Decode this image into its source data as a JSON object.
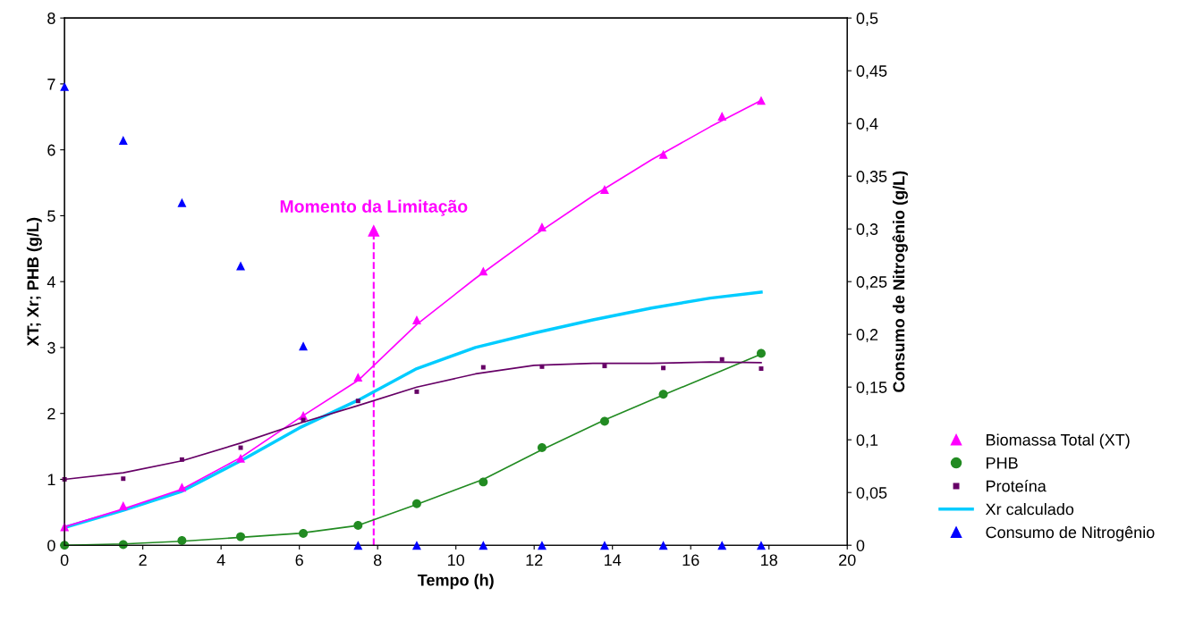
{
  "chart_data": {
    "type": "scatter",
    "xlabel": "Tempo (h)",
    "ylabel": "XT; Xr; PHB (g/L)",
    "y2label": "Consumo de Nitrogênio (g/L)",
    "xlim": [
      0,
      20
    ],
    "xticks": [
      0,
      2,
      4,
      6,
      8,
      10,
      12,
      14,
      16,
      18,
      20
    ],
    "ylim": [
      0,
      8
    ],
    "yticks": [
      0,
      1,
      2,
      3,
      4,
      5,
      6,
      7,
      8
    ],
    "y2lim": [
      0,
      0.5
    ],
    "y2ticks": [
      0,
      {
        "value": 0.05,
        "label": "0,05"
      },
      {
        "value": 0.1,
        "label": "0,1"
      },
      {
        "value": 0.15,
        "label": "0,15"
      },
      {
        "value": 0.2,
        "label": "0,2"
      },
      {
        "value": 0.25,
        "label": "0,25"
      },
      {
        "value": 0.3,
        "label": "0,3"
      },
      {
        "value": 0.35,
        "label": "0,35"
      },
      {
        "value": 0.4,
        "label": "0,4"
      },
      {
        "value": 0.45,
        "label": "0,45"
      },
      {
        "value": 0.5,
        "label": "0,5"
      }
    ],
    "grid": false,
    "legend": "right",
    "annotations": [
      {
        "text": "Momento da Limitação",
        "x": 7.9,
        "y": 4.77
      }
    ],
    "series": [
      {
        "name": "Biomassa Total (XT)",
        "marker": "triangle",
        "color": "#ff00ff",
        "x": [
          0,
          1.5,
          3,
          4.5,
          6.1,
          7.5,
          9,
          10.7,
          12.2,
          13.8,
          15.3,
          16.8,
          17.8
        ],
        "values": [
          0.28,
          0.6,
          0.88,
          1.32,
          1.97,
          2.55,
          3.42,
          4.16,
          4.83,
          5.4,
          5.93,
          6.51,
          6.75
        ]
      },
      {
        "name": "PHB",
        "marker": "circle",
        "color": "#228b22",
        "x": [
          0,
          1.5,
          3,
          4.5,
          6.1,
          7.5,
          9,
          10.7,
          12.2,
          13.8,
          15.3,
          17.8
        ],
        "values": [
          0,
          0.01,
          0.07,
          0.13,
          0.18,
          0.3,
          0.63,
          0.96,
          1.48,
          1.88,
          2.29,
          2.91
        ]
      },
      {
        "name": "Proteína",
        "marker": "square",
        "color": "#660066",
        "x": [
          0,
          1.5,
          3,
          4.5,
          6.1,
          7.5,
          9,
          10.7,
          12.2,
          13.8,
          15.3,
          16.8,
          17.8
        ],
        "values": [
          1.0,
          1.01,
          1.3,
          1.48,
          1.9,
          2.19,
          2.33,
          2.7,
          2.71,
          2.72,
          2.69,
          2.82,
          2.68
        ]
      },
      {
        "name": "Xr calculado",
        "type": "line",
        "marker": "none",
        "color": "#00ccff",
        "x": [
          0,
          1.5,
          3,
          4.5,
          6,
          7.5,
          9,
          10.5,
          12,
          13.5,
          15,
          16.5,
          17.8
        ],
        "values": [
          0.27,
          0.53,
          0.82,
          1.28,
          1.78,
          2.2,
          2.68,
          3.0,
          3.22,
          3.42,
          3.6,
          3.75,
          3.84
        ]
      },
      {
        "name": "Consumo de Nitrogênio",
        "marker": "triangle",
        "axis": "y2",
        "color": "#0000ff",
        "x": [
          0,
          1.5,
          3,
          4.5,
          6.1,
          7.5,
          9,
          10.7,
          12.2,
          13.8,
          15.3,
          16.8,
          17.8
        ],
        "values": [
          0.435,
          0.384,
          0.325,
          0.265,
          0.189,
          0,
          0,
          0,
          0,
          0,
          0,
          0,
          0
        ]
      },
      {
        "type": "line",
        "marker": "none",
        "color": "#ff00ff",
        "x": [
          0,
          1.5,
          3,
          4.5,
          6,
          7.5,
          9,
          10.5,
          12,
          13.5,
          15,
          16.5,
          17.8
        ],
        "values": [
          0.28,
          0.55,
          0.85,
          1.33,
          1.93,
          2.5,
          3.35,
          4.05,
          4.7,
          5.3,
          5.85,
          6.35,
          6.75
        ]
      },
      {
        "type": "line",
        "marker": "none",
        "color": "#228b22",
        "x": [
          0,
          1.5,
          3,
          4.5,
          6,
          7.5,
          9,
          10.7,
          12.2,
          13.8,
          15.3,
          16.8,
          17.8
        ],
        "values": [
          0,
          0.02,
          0.06,
          0.12,
          0.18,
          0.3,
          0.62,
          1.0,
          1.45,
          1.9,
          2.28,
          2.65,
          2.9
        ]
      },
      {
        "type": "line",
        "marker": "none",
        "color": "#660066",
        "x": [
          0,
          1.5,
          3,
          4.5,
          6,
          7.5,
          9,
          10.5,
          12,
          13.5,
          15,
          16.5,
          17.8
        ],
        "values": [
          1.0,
          1.1,
          1.28,
          1.55,
          1.85,
          2.12,
          2.4,
          2.6,
          2.73,
          2.76,
          2.76,
          2.78,
          2.77
        ]
      }
    ]
  }
}
